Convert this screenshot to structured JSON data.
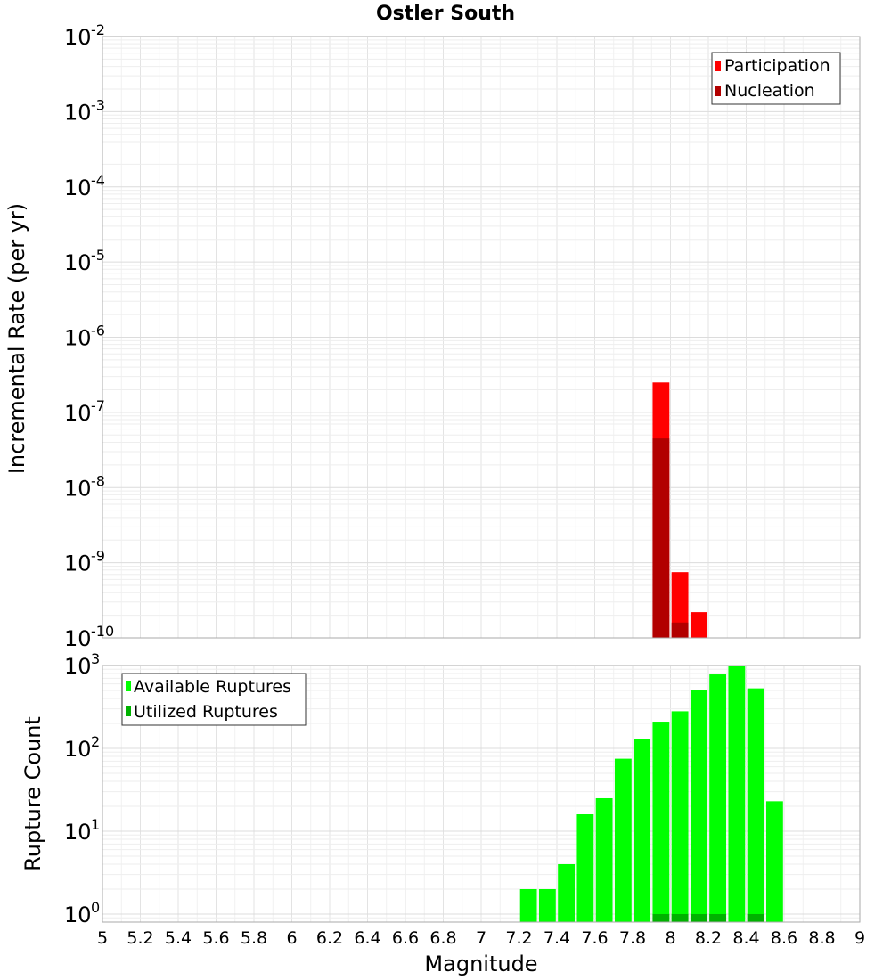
{
  "chart_data": [
    {
      "type": "bar",
      "title": "Ostler South",
      "ylabel": "Incremental Rate (per yr)",
      "xlabel": "",
      "yscale": "log",
      "ylim": [
        1e-10,
        0.01
      ],
      "xlim": [
        5,
        9
      ],
      "grid": true,
      "legend_placement": "top-right",
      "bin_width": 0.1,
      "series": [
        {
          "name": "Participation",
          "color": "#ff0000",
          "x": [
            7.95,
            8.05,
            8.15
          ],
          "values": [
            2.5e-07,
            7.5e-10,
            2.2e-10
          ]
        },
        {
          "name": "Nucleation",
          "color": "#b20000",
          "x": [
            7.95,
            8.05
          ],
          "values": [
            4.5e-08,
            1.6e-10
          ]
        }
      ]
    },
    {
      "type": "bar",
      "title": "",
      "ylabel": "Rupture Count",
      "xlabel": "Magnitude",
      "yscale": "log",
      "ylim": [
        0.8,
        1000
      ],
      "xlim": [
        5,
        9
      ],
      "grid": true,
      "legend_placement": "top-left",
      "bin_width": 0.1,
      "x_ticks": [
        "5",
        "5.2",
        "5.4",
        "5.6",
        "5.8",
        "6",
        "6.2",
        "6.4",
        "6.6",
        "6.8",
        "7",
        "7.2",
        "7.4",
        "7.6",
        "7.8",
        "8",
        "8.2",
        "8.4",
        "8.6",
        "8.8",
        "9"
      ],
      "series": [
        {
          "name": "Available Ruptures",
          "color": "#00ff00",
          "x": [
            7.25,
            7.35,
            7.45,
            7.55,
            7.65,
            7.75,
            7.85,
            7.95,
            8.05,
            8.15,
            8.25,
            8.35,
            8.45,
            8.55
          ],
          "values": [
            2,
            2,
            4,
            16,
            25,
            75,
            130,
            210,
            280,
            500,
            780,
            1000,
            530,
            23
          ]
        },
        {
          "name": "Utilized Ruptures",
          "color": "#00b200",
          "x": [
            7.95,
            8.05,
            8.15,
            8.25,
            8.45
          ],
          "values": [
            1,
            1,
            1,
            1,
            1
          ]
        }
      ]
    }
  ]
}
